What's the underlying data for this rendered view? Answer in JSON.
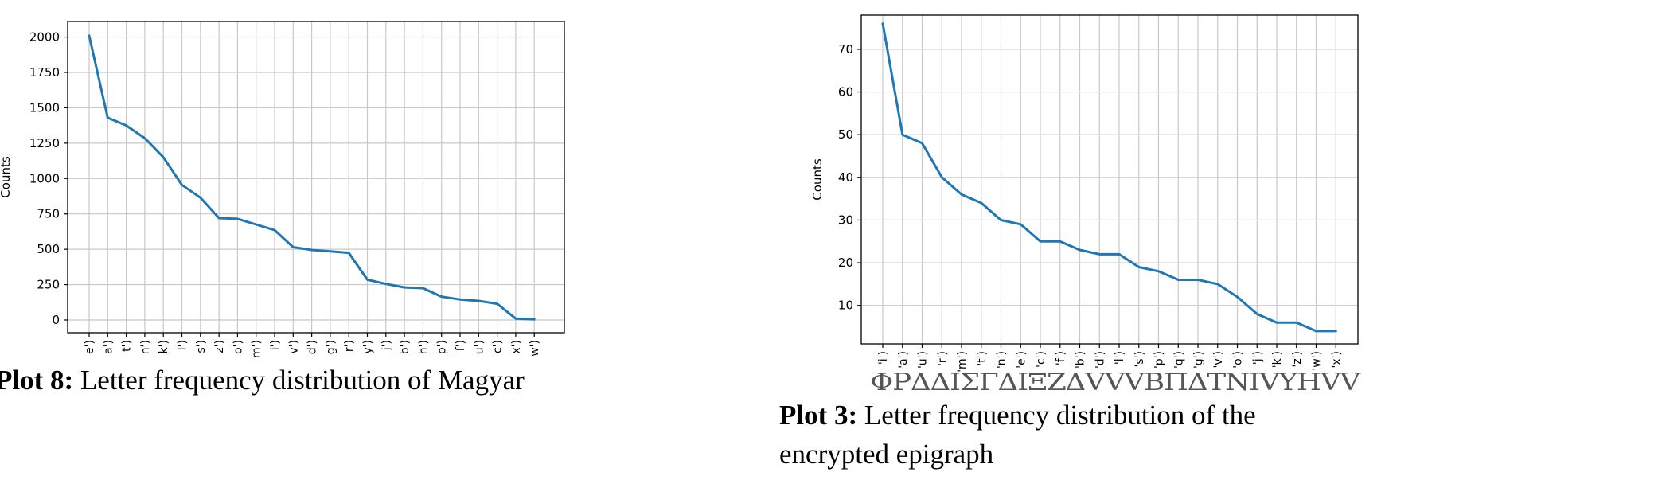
{
  "chart_data": [
    {
      "type": "line",
      "title": "",
      "xlabel": "",
      "ylabel": "Counts",
      "grid": true,
      "categories": [
        "e')",
        "a')",
        "t')",
        "n')",
        "k')",
        "l')",
        "s')",
        "z')",
        "o')",
        "m')",
        "i')",
        "v')",
        "d')",
        "g')",
        "r')",
        "y')",
        "j')",
        "b')",
        "h')",
        "p')",
        "f')",
        "u')",
        "c')",
        "x')",
        "w')"
      ],
      "values": [
        2010,
        1430,
        1375,
        1285,
        1150,
        955,
        865,
        720,
        715,
        675,
        635,
        515,
        495,
        485,
        475,
        285,
        255,
        230,
        225,
        165,
        145,
        135,
        115,
        10,
        5
      ],
      "ylim": [
        -90,
        2110
      ],
      "yticks": [
        0,
        250,
        500,
        750,
        1000,
        1250,
        1500,
        1750,
        2000
      ],
      "color": "#1f77b4",
      "caption_label": "Plot 8:",
      "caption_text": " Letter frequency distribution of Magyar"
    },
    {
      "type": "line",
      "title": "",
      "xlabel": "",
      "ylabel": "Counts",
      "grid": true,
      "categories": [
        "'i')",
        "'a')",
        "'u')",
        "'r')",
        "'m')",
        "'t')",
        "'n')",
        "'e')",
        "'c')",
        "'f')",
        "'b')",
        "'d')",
        "'l')",
        "'s')",
        "'p')",
        "'q')",
        "'g')",
        "'v')",
        "'o')",
        "'j')",
        "'k')",
        "'z')",
        "'w')",
        "'x')"
      ],
      "values": [
        76,
        50,
        48,
        40,
        36,
        34,
        30,
        29,
        25,
        25,
        23,
        22,
        22,
        19,
        18,
        16,
        16,
        15,
        12,
        8,
        6,
        6,
        4,
        4
      ],
      "ylim": [
        1,
        78
      ],
      "yticks": [
        10,
        20,
        30,
        40,
        50,
        60,
        70
      ],
      "color": "#1f77b4",
      "caption_label": "Plot 3:",
      "caption_line1": " Letter frequency distribution of the",
      "caption_line2": "encrypted epigraph",
      "glyph_strip": "ΦΡΔΔΙΣΓΔΙΞΖΔVVVBΠΔΤΝΙVΥΗVV"
    }
  ]
}
